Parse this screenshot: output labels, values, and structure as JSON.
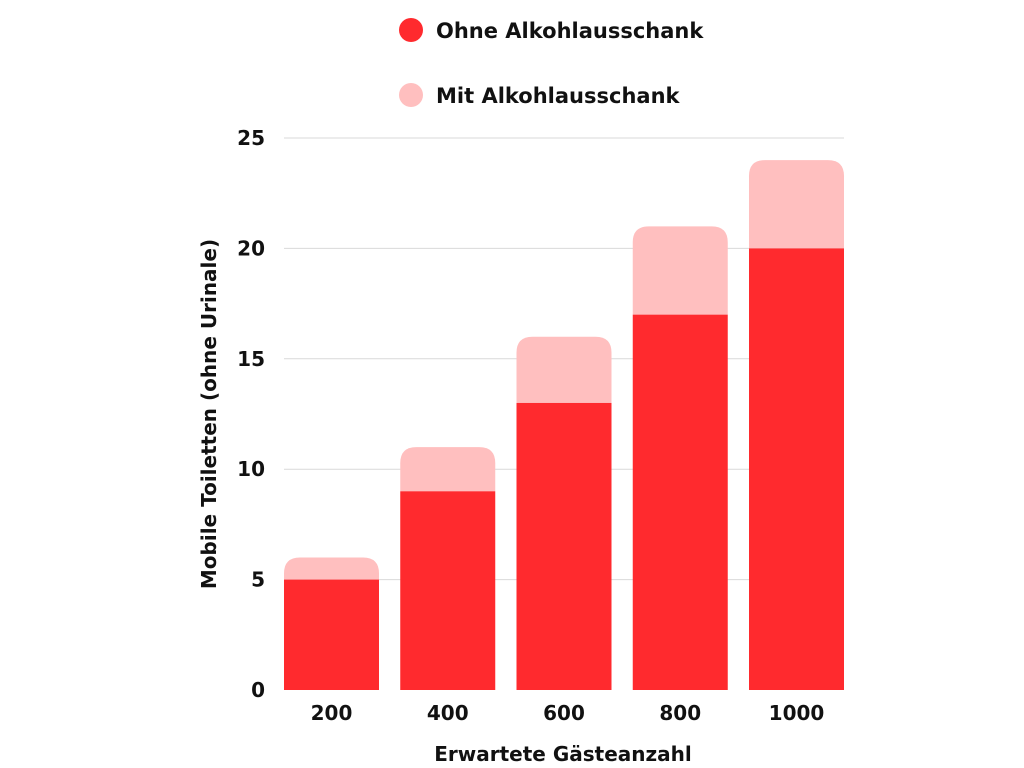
{
  "chart_data": {
    "type": "bar",
    "stacked": true,
    "categories": [
      "200",
      "400",
      "600",
      "800",
      "1000"
    ],
    "series": [
      {
        "name": "Ohne Alkohlausschank",
        "values": [
          5,
          9,
          13,
          17,
          20
        ],
        "color": "#ff2a2e"
      },
      {
        "name": "Mit Alkohlausschank",
        "values": [
          1,
          2,
          3,
          4,
          4
        ],
        "color": "#ffbfbf"
      }
    ],
    "xlabel": "Erwartete Gästeanzahl",
    "ylabel": "Mobile Toiletten (ohne Urinale)",
    "ylim": [
      0,
      25
    ],
    "yticks": [
      0,
      5,
      10,
      15,
      20,
      25
    ],
    "grid": true,
    "legend_position": "top-center"
  }
}
